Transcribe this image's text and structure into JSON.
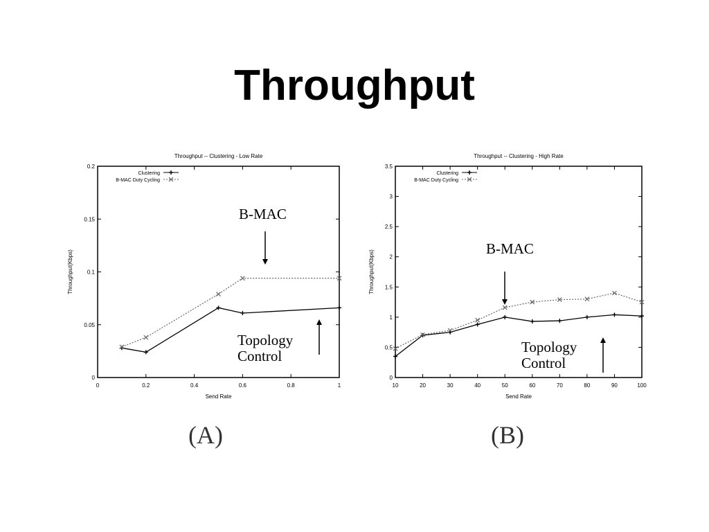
{
  "slide": {
    "title": "Throughput"
  },
  "chart_data": [
    {
      "type": "line",
      "title": "Throughput -- Clustering - Low Rate",
      "xlabel": "Send Rate",
      "ylabel": "Throughput(Kbps)",
      "xlim": [
        0,
        1
      ],
      "ylim": [
        0,
        0.2
      ],
      "xticks": [
        0,
        0.2,
        0.4,
        0.6,
        0.8,
        1
      ],
      "xtick_labels": [
        "0",
        "0.2",
        "0.4",
        "0.6",
        "0.8",
        "1"
      ],
      "yticks": [
        0,
        0.05,
        0.1,
        0.15,
        0.2
      ],
      "ytick_labels": [
        "0",
        "0.05",
        "0.1",
        "0.15",
        "0.2"
      ],
      "grid": false,
      "legend_position": "top-left",
      "series": [
        {
          "name": "Clustering",
          "x": [
            0.1,
            0.2,
            0.5,
            0.6,
            1.0
          ],
          "y": [
            0.028,
            0.024,
            0.066,
            0.061,
            0.066
          ],
          "style": "solid",
          "marker": "plus",
          "color": "#000000"
        },
        {
          "name": "B-MAC Duty Cycling",
          "x": [
            0.1,
            0.2,
            0.5,
            0.6,
            1.0
          ],
          "y": [
            0.029,
            0.038,
            0.079,
            0.094,
            0.094
          ],
          "style": "dotted",
          "marker": "x",
          "color": "#666666"
        }
      ],
      "annotations": [
        {
          "text": "B-MAC",
          "arrow": "down"
        },
        {
          "text": "Topology",
          "arrow": "up"
        },
        {
          "text": "Control"
        }
      ],
      "panel_label": "(A)"
    },
    {
      "type": "line",
      "title": "Throughput -- Clustering - High Rate",
      "xlabel": "Send Rate",
      "ylabel": "Throughput(Kbps)",
      "xlim": [
        10,
        100
      ],
      "ylim": [
        0,
        3.5
      ],
      "xticks": [
        10,
        20,
        30,
        40,
        50,
        60,
        70,
        80,
        90,
        100
      ],
      "xtick_labels": [
        "10",
        "20",
        "30",
        "40",
        "50",
        "60",
        "70",
        "80",
        "90",
        "100"
      ],
      "yticks": [
        0,
        0.5,
        1,
        1.5,
        2,
        2.5,
        3,
        3.5
      ],
      "ytick_labels": [
        "0",
        "0.5",
        "1",
        "1.5",
        "2",
        "2.5",
        "3",
        "3.5"
      ],
      "grid": false,
      "legend_position": "top-left",
      "series": [
        {
          "name": "Clustering",
          "x": [
            10,
            20,
            30,
            40,
            50,
            60,
            70,
            80,
            90,
            100
          ],
          "y": [
            0.35,
            0.7,
            0.75,
            0.88,
            1.0,
            0.93,
            0.94,
            1.0,
            1.04,
            1.02
          ],
          "style": "solid",
          "marker": "plus",
          "color": "#000000"
        },
        {
          "name": "B-MAC Duty Cycling",
          "x": [
            10,
            20,
            30,
            40,
            50,
            60,
            70,
            80,
            90,
            100
          ],
          "y": [
            0.48,
            0.71,
            0.78,
            0.95,
            1.16,
            1.25,
            1.29,
            1.3,
            1.4,
            1.25
          ],
          "style": "dotted",
          "marker": "x",
          "color": "#666666"
        }
      ],
      "annotations": [
        {
          "text": "B-MAC",
          "arrow": "down"
        },
        {
          "text": "Topology",
          "arrow": "up"
        },
        {
          "text": "Control"
        }
      ],
      "panel_label": "(B)"
    }
  ]
}
